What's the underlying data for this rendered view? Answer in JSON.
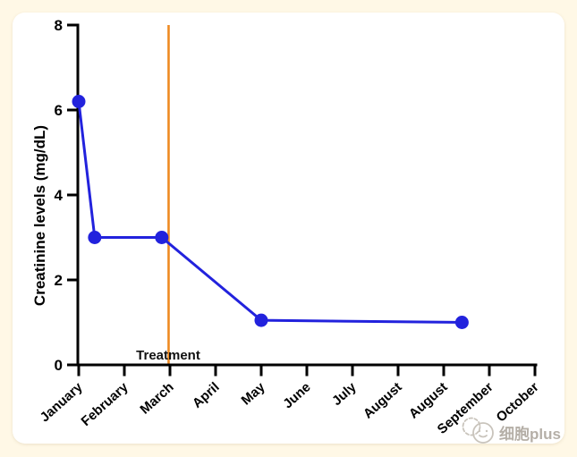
{
  "page": {
    "background_color": "#fff8e6",
    "card_color": "#ffffff"
  },
  "chart_data": {
    "type": "line",
    "title": "",
    "xlabel": "",
    "ylabel": "Creatinine levels (mg/dL)",
    "ylim": [
      0,
      8
    ],
    "yticks": [
      "0",
      "2",
      "4",
      "6",
      "8"
    ],
    "x_tick_labels": [
      "January",
      "February",
      "March",
      "April",
      "May",
      "June",
      "July",
      "August",
      "August",
      "September",
      "October"
    ],
    "grid": false,
    "legend": "none",
    "axis_color": "#000000",
    "series": [
      {
        "name": "Creatinine levels",
        "color": "#2222dd",
        "marker": "circle",
        "points": [
          {
            "x": 0.0,
            "y": 6.2
          },
          {
            "x": 0.35,
            "y": 3.0
          },
          {
            "x": 1.82,
            "y": 3.0
          },
          {
            "x": 4.0,
            "y": 1.05
          },
          {
            "x": 8.4,
            "y": 1.0
          }
        ]
      }
    ],
    "annotation_line": {
      "x": 1.97,
      "label": "Treatment",
      "color": "#ee8a22"
    }
  },
  "watermark": {
    "logo_icon": "cell-cartoon-logo",
    "text": "细胞plus",
    "text_color": "#b5afa7",
    "logo_color": "#c9c4bc"
  }
}
